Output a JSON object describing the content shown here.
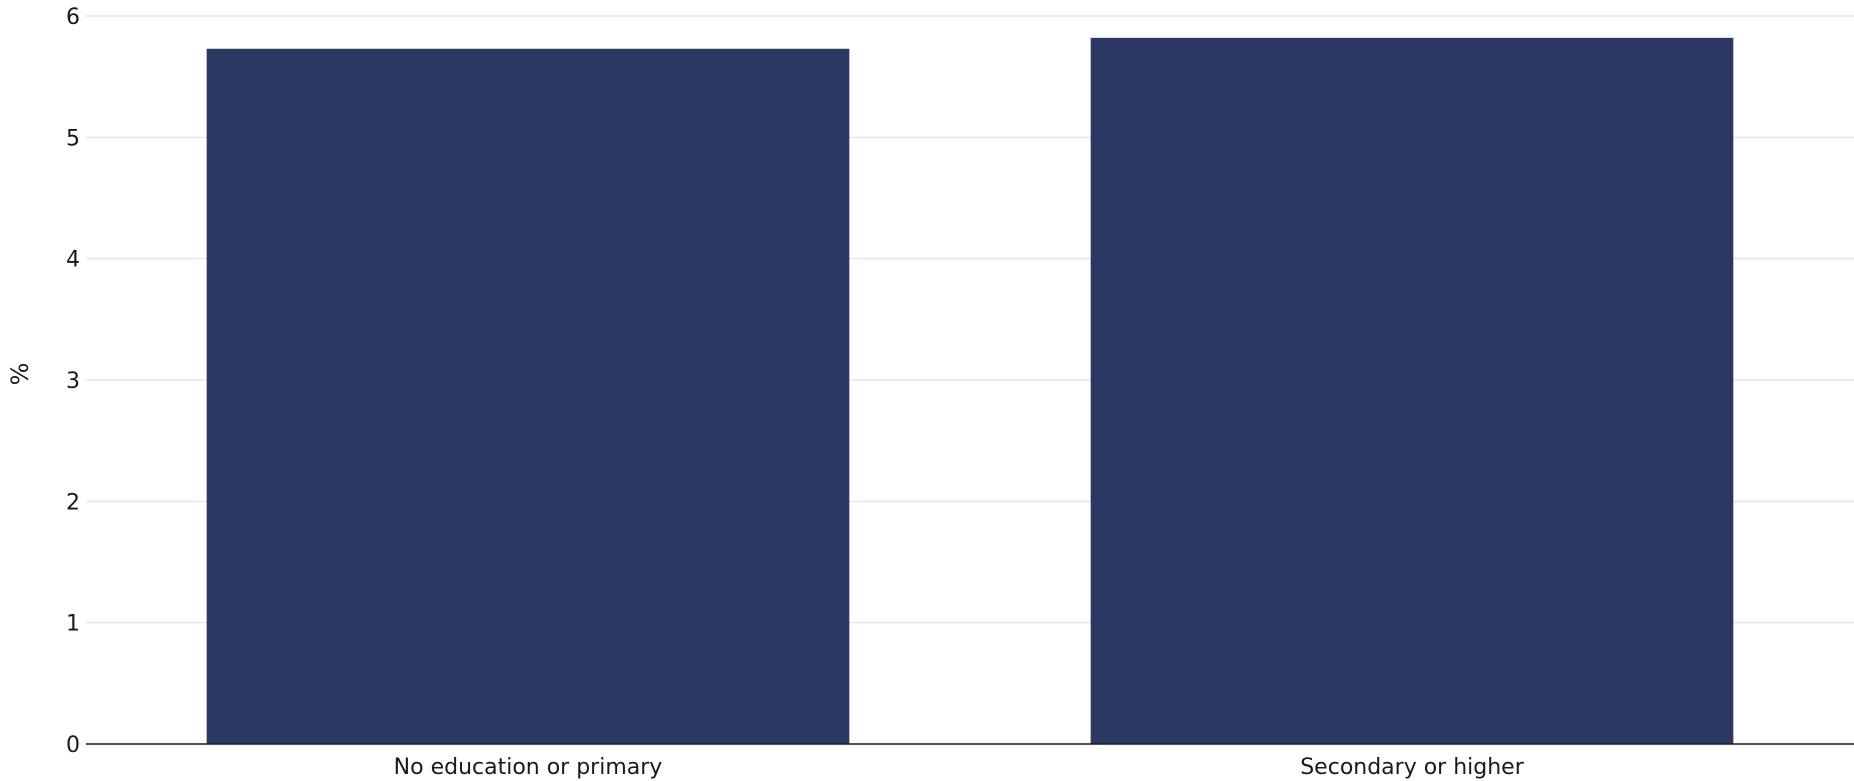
{
  "chart_data": {
    "type": "bar",
    "categories": [
      "No education or primary",
      "Secondary or higher"
    ],
    "values": [
      5.73,
      5.82
    ],
    "title": "",
    "xlabel": "",
    "ylabel": "%",
    "ylim": [
      0,
      6
    ],
    "yticks": [
      0,
      1,
      2,
      3,
      4,
      5,
      6
    ],
    "grid": true,
    "legend": "none",
    "bar_color": "#2b3864"
  }
}
